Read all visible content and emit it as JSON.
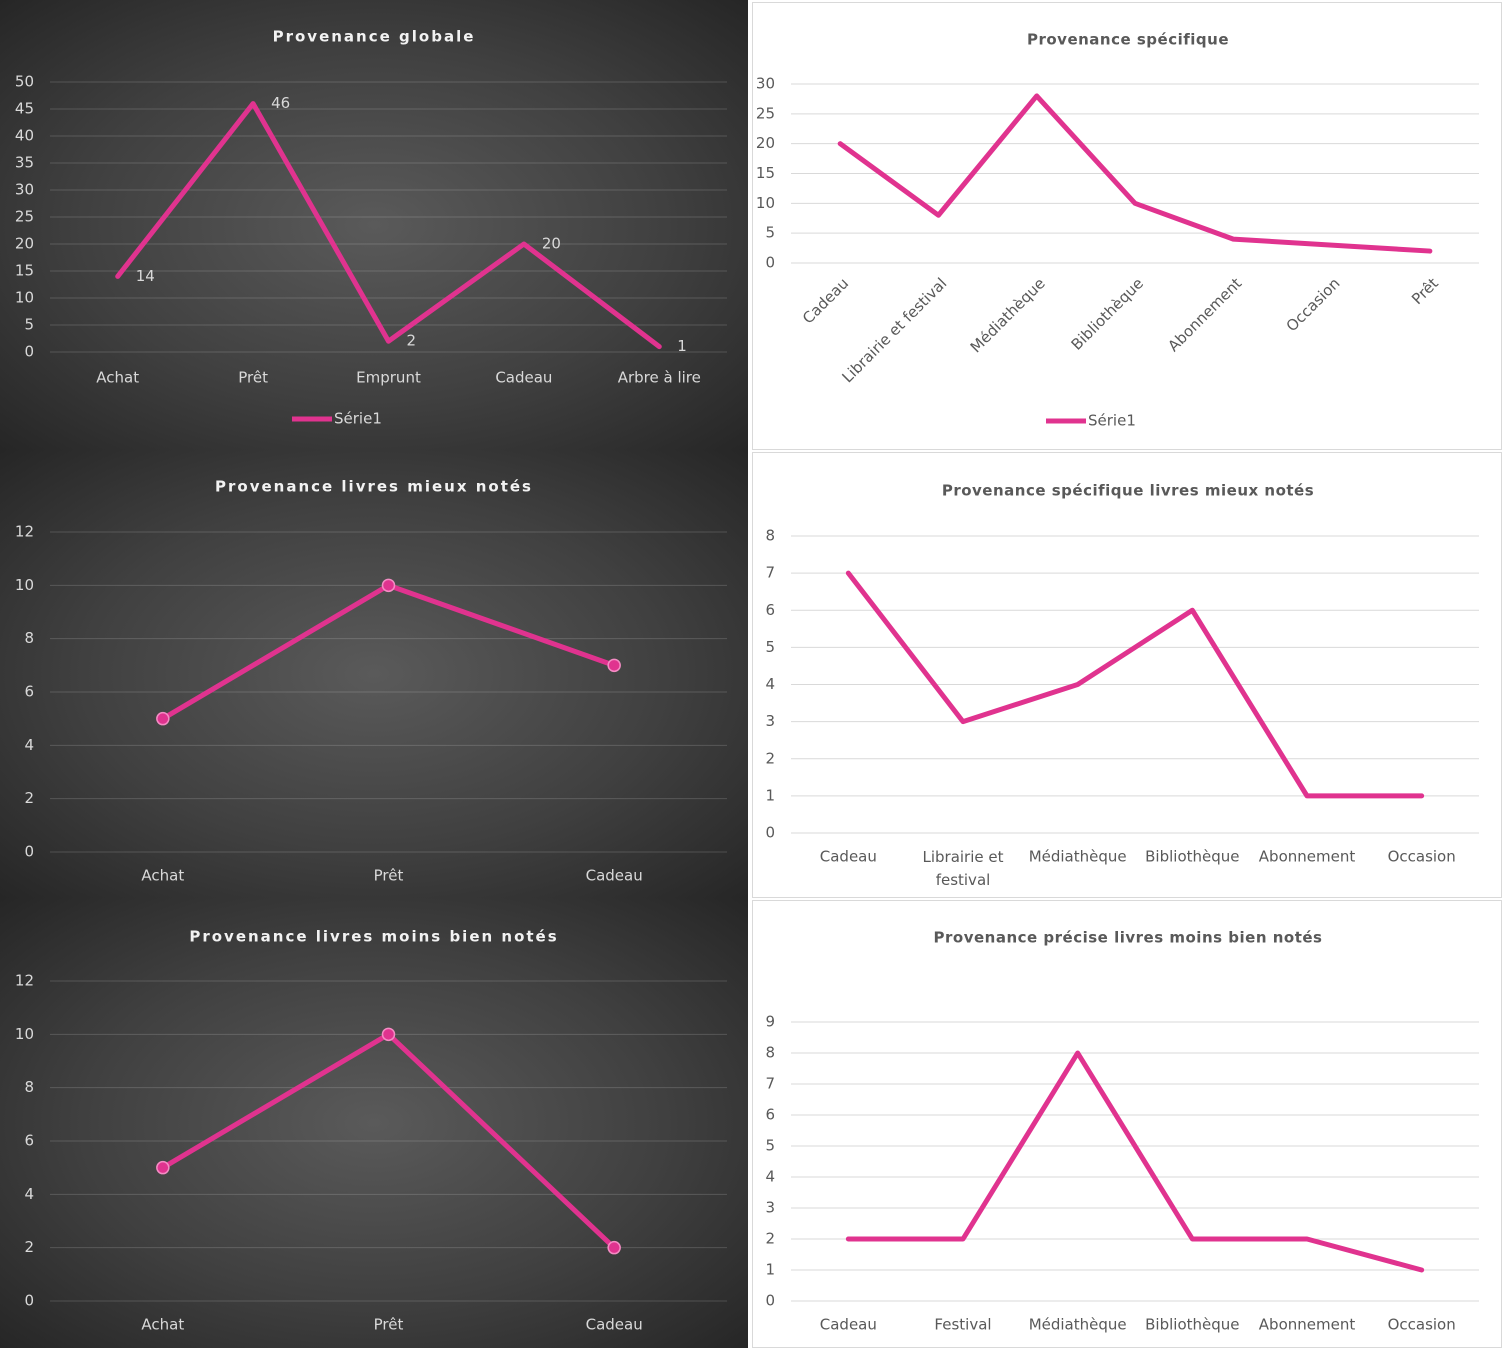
{
  "chart_data": [
    {
      "type": "line",
      "theme": "dark",
      "title": "Provenance globale",
      "categories": [
        "Achat",
        "Prêt",
        "Emprunt",
        "Cadeau",
        "Arbre à lire"
      ],
      "series": [
        {
          "name": "Série1",
          "color": "#e0338f",
          "values": [
            14,
            46,
            2,
            20,
            1
          ]
        }
      ],
      "ylim": [
        0,
        50
      ],
      "yticks": [
        0,
        5,
        10,
        15,
        20,
        25,
        30,
        35,
        40,
        45,
        50
      ],
      "grid": true,
      "data_labels": true,
      "markers": false,
      "legend": "bottom"
    },
    {
      "type": "line",
      "theme": "light",
      "title": "Provenance spécifique",
      "categories": [
        "Cadeau",
        "Librairie et festival",
        "Médiathèque",
        "Bibliothèque",
        "Abonnement",
        "Occasion",
        "Prêt"
      ],
      "series": [
        {
          "name": "Série1",
          "color": "#e0338f",
          "values": [
            20,
            8,
            28,
            10,
            4,
            3,
            2
          ]
        }
      ],
      "ylim": [
        0,
        30
      ],
      "yticks": [
        0,
        5,
        10,
        15,
        20,
        25,
        30
      ],
      "grid": true,
      "data_labels": false,
      "markers": false,
      "legend": "bottom",
      "x_label_rotation": -45
    },
    {
      "type": "line",
      "theme": "dark",
      "title": "Provenance livres mieux notés",
      "categories": [
        "Achat",
        "Prêt",
        "Cadeau"
      ],
      "values": [
        5,
        10,
        7
      ],
      "color": "#e0338f",
      "ylim": [
        0,
        12
      ],
      "yticks": [
        0,
        2,
        4,
        6,
        8,
        10,
        12
      ],
      "grid": true,
      "data_labels": false,
      "markers": true
    },
    {
      "type": "line",
      "theme": "light",
      "title": "Provenance spécifique livres mieux notés",
      "categories": [
        "Cadeau",
        "Librairie et festival",
        "Médiathèque",
        "Bibliothèque",
        "Abonnement",
        "Occasion"
      ],
      "values": [
        7,
        3,
        4,
        6,
        1,
        1
      ],
      "color": "#e0338f",
      "ylim": [
        0,
        8
      ],
      "yticks": [
        0,
        1,
        2,
        3,
        4,
        5,
        6,
        7,
        8
      ],
      "grid": true,
      "data_labels": false,
      "markers": false
    },
    {
      "type": "line",
      "theme": "dark",
      "title": "Provenance livres moins bien notés",
      "categories": [
        "Achat",
        "Prêt",
        "Cadeau"
      ],
      "values": [
        5,
        10,
        2
      ],
      "color": "#e0338f",
      "ylim": [
        0,
        12
      ],
      "yticks": [
        0,
        2,
        4,
        6,
        8,
        10,
        12
      ],
      "grid": true,
      "data_labels": false,
      "markers": true
    },
    {
      "type": "line",
      "theme": "light",
      "title": "Provenance précise livres moins bien notés",
      "categories": [
        "Cadeau",
        "Festival",
        "Médiathèque",
        "Bibliothèque",
        "Abonnement",
        "Occasion"
      ],
      "values": [
        2,
        2,
        8,
        2,
        2,
        1
      ],
      "color": "#e0338f",
      "ylim": [
        0,
        9
      ],
      "yticks": [
        0,
        1,
        2,
        3,
        4,
        5,
        6,
        7,
        8,
        9
      ],
      "grid": true,
      "data_labels": false,
      "markers": false
    }
  ]
}
